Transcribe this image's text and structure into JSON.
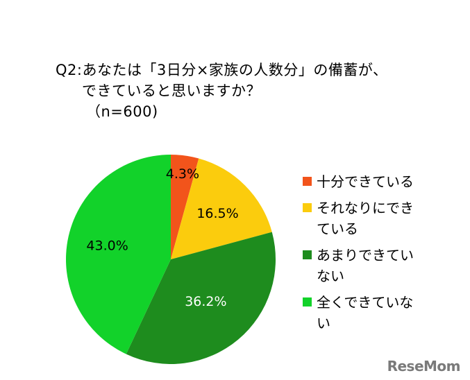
{
  "title": {
    "line1": "Q2:あなたは「3日分×家族の人数分」の備蓄が、",
    "line2": "できていると思いますか？",
    "line3": "（n=600)"
  },
  "logo": "ReseMom",
  "chart_data": {
    "type": "pie",
    "title": "Q2:あなたは「3日分×家族の人数分」の備蓄が、できていると思いますか？ （n=600)",
    "slices": [
      {
        "label": "十分できている",
        "value": 4.3,
        "display": "4.3%",
        "color": "#f2541b",
        "label_color": "#000000"
      },
      {
        "label": "それなりにできている",
        "value": 16.5,
        "display": "16.5%",
        "color": "#fbcc0d",
        "label_color": "#000000"
      },
      {
        "label": "あまりできていない",
        "value": 36.2,
        "display": "36.2%",
        "color": "#1e8c1e",
        "label_color": "#ffffff"
      },
      {
        "label": "全くできていない",
        "value": 43.0,
        "display": "43.0%",
        "color": "#12d22a",
        "label_color": "#000000"
      }
    ],
    "legend_position": "right"
  }
}
